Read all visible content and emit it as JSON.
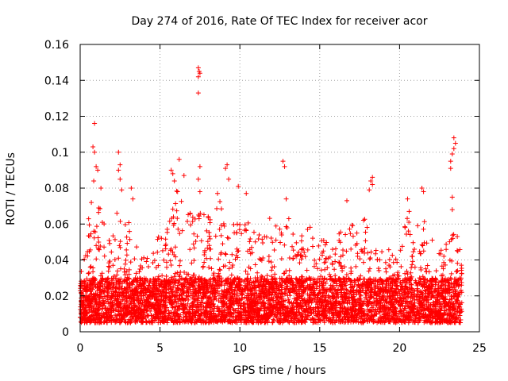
{
  "chart_data": {
    "type": "scatter",
    "title": "Day 274 of 2016, Rate Of TEC Index for receiver acor",
    "xlabel": "GPS time / hours",
    "ylabel": "ROTI / TECUs",
    "xlim": [
      0,
      25
    ],
    "ylim": [
      0,
      0.16
    ],
    "x_ticks": [
      0,
      5,
      10,
      15,
      20,
      25
    ],
    "x_tick_labels": [
      "0",
      "5",
      "10",
      "15",
      "20",
      "25"
    ],
    "y_ticks": [
      0,
      0.02,
      0.04,
      0.06,
      0.08,
      0.1,
      0.12,
      0.14,
      0.16
    ],
    "y_tick_labels": [
      "0",
      "0.02",
      "0.04",
      "0.06",
      "0.08",
      "0.1",
      "0.12",
      "0.14",
      "0.16"
    ],
    "grid": true,
    "marker": "+",
    "color": "#ff0000",
    "x_data_range": [
      0,
      23.9
    ],
    "dense_band_ylim": [
      0.005,
      0.03
    ],
    "series": [
      {
        "name": "ROTI",
        "notable_points": [
          {
            "x": 0.9,
            "y": 0.116
          },
          {
            "x": 0.8,
            "y": 0.103
          },
          {
            "x": 0.9,
            "y": 0.1
          },
          {
            "x": 1.0,
            "y": 0.092
          },
          {
            "x": 1.1,
            "y": 0.09
          },
          {
            "x": 0.85,
            "y": 0.084
          },
          {
            "x": 1.3,
            "y": 0.08
          },
          {
            "x": 0.7,
            "y": 0.072
          },
          {
            "x": 2.4,
            "y": 0.1
          },
          {
            "x": 2.5,
            "y": 0.093
          },
          {
            "x": 2.4,
            "y": 0.09
          },
          {
            "x": 2.5,
            "y": 0.085
          },
          {
            "x": 2.6,
            "y": 0.079
          },
          {
            "x": 3.2,
            "y": 0.08
          },
          {
            "x": 3.3,
            "y": 0.074
          },
          {
            "x": 6.2,
            "y": 0.096
          },
          {
            "x": 5.7,
            "y": 0.09
          },
          {
            "x": 5.8,
            "y": 0.088
          },
          {
            "x": 6.5,
            "y": 0.087
          },
          {
            "x": 5.9,
            "y": 0.084
          },
          {
            "x": 6.1,
            "y": 0.078
          },
          {
            "x": 7.4,
            "y": 0.147
          },
          {
            "x": 7.45,
            "y": 0.145
          },
          {
            "x": 7.5,
            "y": 0.144
          },
          {
            "x": 7.4,
            "y": 0.142
          },
          {
            "x": 7.4,
            "y": 0.133
          },
          {
            "x": 7.5,
            "y": 0.092
          },
          {
            "x": 7.4,
            "y": 0.085
          },
          {
            "x": 7.5,
            "y": 0.078
          },
          {
            "x": 9.2,
            "y": 0.093
          },
          {
            "x": 9.1,
            "y": 0.091
          },
          {
            "x": 9.3,
            "y": 0.085
          },
          {
            "x": 8.6,
            "y": 0.077
          },
          {
            "x": 9.9,
            "y": 0.081
          },
          {
            "x": 10.4,
            "y": 0.077
          },
          {
            "x": 12.7,
            "y": 0.095
          },
          {
            "x": 12.8,
            "y": 0.092
          },
          {
            "x": 12.9,
            "y": 0.074
          },
          {
            "x": 16.7,
            "y": 0.073
          },
          {
            "x": 18.3,
            "y": 0.086
          },
          {
            "x": 18.2,
            "y": 0.084
          },
          {
            "x": 18.3,
            "y": 0.082
          },
          {
            "x": 18.1,
            "y": 0.079
          },
          {
            "x": 20.5,
            "y": 0.074
          },
          {
            "x": 20.6,
            "y": 0.067
          },
          {
            "x": 21.4,
            "y": 0.08
          },
          {
            "x": 21.5,
            "y": 0.078
          },
          {
            "x": 23.4,
            "y": 0.108
          },
          {
            "x": 23.5,
            "y": 0.105
          },
          {
            "x": 23.4,
            "y": 0.102
          },
          {
            "x": 23.3,
            "y": 0.099
          },
          {
            "x": 23.2,
            "y": 0.095
          },
          {
            "x": 23.2,
            "y": 0.091
          },
          {
            "x": 23.3,
            "y": 0.075
          },
          {
            "x": 23.3,
            "y": 0.068
          }
        ]
      }
    ],
    "density_profile": [
      {
        "x": 0.5,
        "peak": 0.065
      },
      {
        "x": 1.0,
        "peak": 0.085
      },
      {
        "x": 1.5,
        "peak": 0.06
      },
      {
        "x": 2.0,
        "peak": 0.055
      },
      {
        "x": 2.5,
        "peak": 0.075
      },
      {
        "x": 3.0,
        "peak": 0.065
      },
      {
        "x": 3.5,
        "peak": 0.05
      },
      {
        "x": 4.0,
        "peak": 0.045
      },
      {
        "x": 4.5,
        "peak": 0.05
      },
      {
        "x": 5.0,
        "peak": 0.055
      },
      {
        "x": 5.5,
        "peak": 0.06
      },
      {
        "x": 6.0,
        "peak": 0.08
      },
      {
        "x": 6.5,
        "peak": 0.075
      },
      {
        "x": 7.0,
        "peak": 0.065
      },
      {
        "x": 7.5,
        "peak": 0.07
      },
      {
        "x": 8.0,
        "peak": 0.065
      },
      {
        "x": 8.5,
        "peak": 0.07
      },
      {
        "x": 9.0,
        "peak": 0.075
      },
      {
        "x": 9.5,
        "peak": 0.065
      },
      {
        "x": 10.0,
        "peak": 0.06
      },
      {
        "x": 10.5,
        "peak": 0.065
      },
      {
        "x": 11.0,
        "peak": 0.055
      },
      {
        "x": 11.5,
        "peak": 0.06
      },
      {
        "x": 12.0,
        "peak": 0.065
      },
      {
        "x": 12.5,
        "peak": 0.07
      },
      {
        "x": 13.0,
        "peak": 0.065
      },
      {
        "x": 13.5,
        "peak": 0.06
      },
      {
        "x": 14.0,
        "peak": 0.055
      },
      {
        "x": 14.5,
        "peak": 0.06
      },
      {
        "x": 15.0,
        "peak": 0.055
      },
      {
        "x": 15.5,
        "peak": 0.05
      },
      {
        "x": 16.0,
        "peak": 0.055
      },
      {
        "x": 16.5,
        "peak": 0.065
      },
      {
        "x": 17.0,
        "peak": 0.06
      },
      {
        "x": 17.5,
        "peak": 0.055
      },
      {
        "x": 18.0,
        "peak": 0.07
      },
      {
        "x": 18.5,
        "peak": 0.06
      },
      {
        "x": 19.0,
        "peak": 0.05
      },
      {
        "x": 19.5,
        "peak": 0.045
      },
      {
        "x": 20.0,
        "peak": 0.05
      },
      {
        "x": 20.5,
        "peak": 0.065
      },
      {
        "x": 21.0,
        "peak": 0.06
      },
      {
        "x": 21.5,
        "peak": 0.065
      },
      {
        "x": 22.0,
        "peak": 0.055
      },
      {
        "x": 22.5,
        "peak": 0.045
      },
      {
        "x": 23.0,
        "peak": 0.05
      },
      {
        "x": 23.5,
        "peak": 0.06
      },
      {
        "x": 23.9,
        "peak": 0.045
      }
    ]
  }
}
